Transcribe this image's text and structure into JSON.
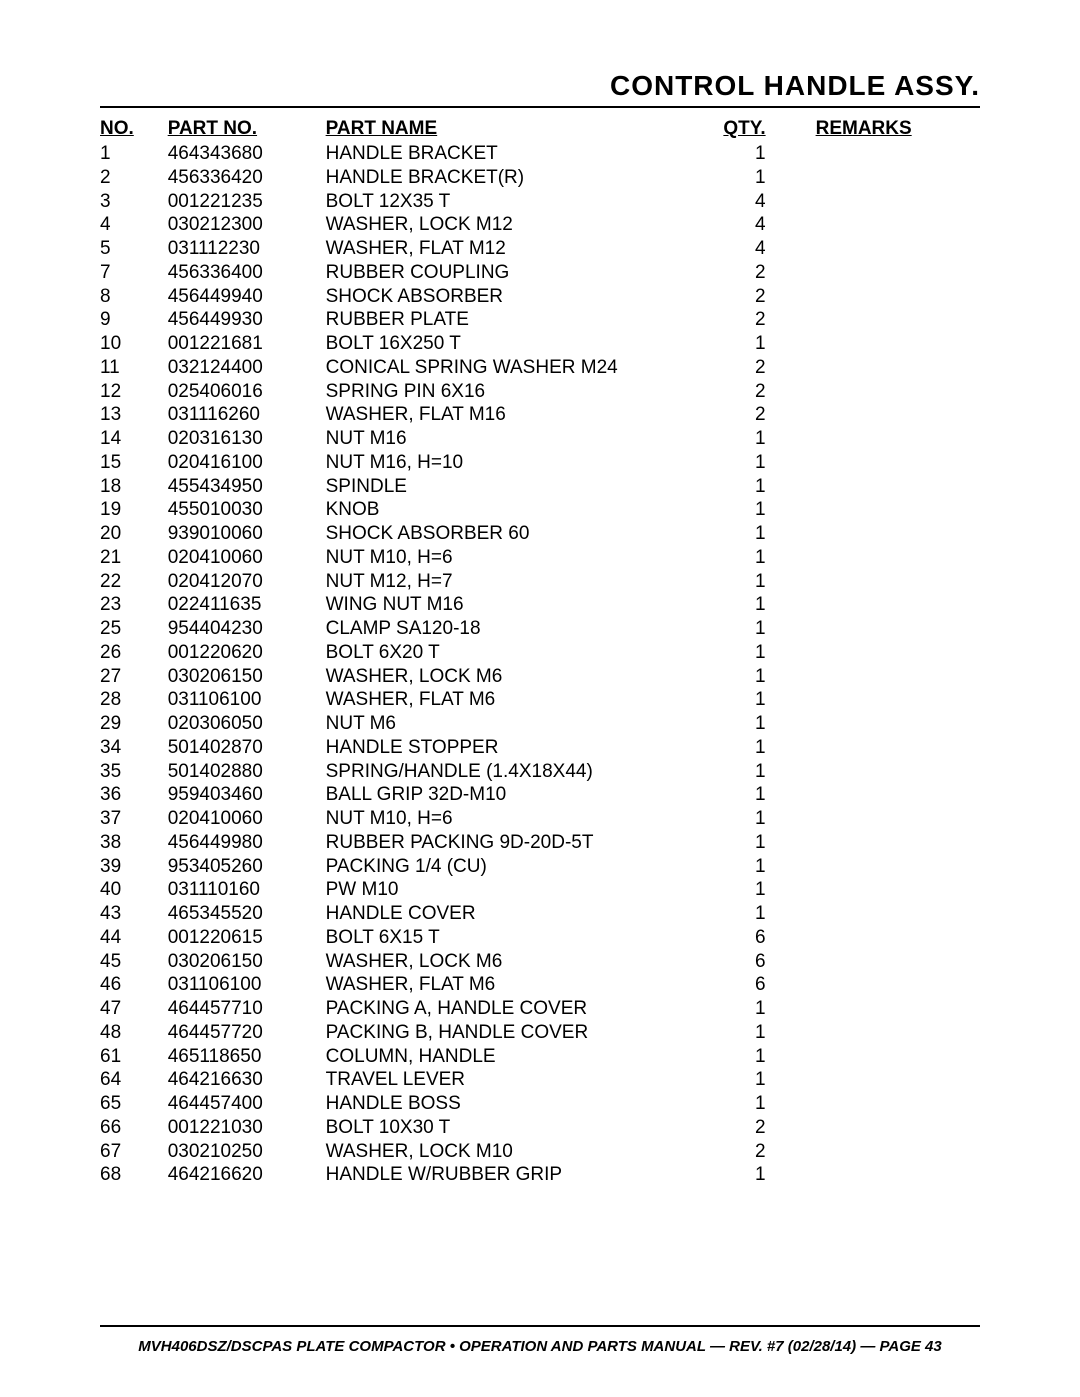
{
  "title": "CONTROL HANDLE ASSY.",
  "headers": {
    "no": "NO.",
    "partno": "PART NO.",
    "partname": "PART NAME",
    "qty": "QTY.",
    "remarks": "REMARKS"
  },
  "rows": [
    {
      "no": "1",
      "partno": "464343680",
      "partname": "HANDLE BRACKET",
      "qty": "1",
      "remarks": ""
    },
    {
      "no": "2",
      "partno": "456336420",
      "partname": "HANDLE BRACKET(R)",
      "qty": "1",
      "remarks": ""
    },
    {
      "no": "3",
      "partno": "001221235",
      "partname": "BOLT 12X35 T",
      "qty": "4",
      "remarks": ""
    },
    {
      "no": "4",
      "partno": "030212300",
      "partname": "WASHER, LOCK M12",
      "qty": "4",
      "remarks": ""
    },
    {
      "no": "5",
      "partno": "031112230",
      "partname": "WASHER, FLAT M12",
      "qty": "4",
      "remarks": ""
    },
    {
      "no": "7",
      "partno": "456336400",
      "partname": "RUBBER COUPLING",
      "qty": "2",
      "remarks": ""
    },
    {
      "no": "8",
      "partno": "456449940",
      "partname": "SHOCK ABSORBER",
      "qty": "2",
      "remarks": ""
    },
    {
      "no": "9",
      "partno": "456449930",
      "partname": "RUBBER PLATE",
      "qty": "2",
      "remarks": ""
    },
    {
      "no": "10",
      "partno": "001221681",
      "partname": "BOLT 16X250 T",
      "qty": "1",
      "remarks": ""
    },
    {
      "no": "11",
      "partno": "032124400",
      "partname": "CONICAL SPRING WASHER M24",
      "qty": "2",
      "remarks": ""
    },
    {
      "no": "12",
      "partno": "025406016",
      "partname": "SPRING PIN 6X16",
      "qty": "2",
      "remarks": ""
    },
    {
      "no": "13",
      "partno": "031116260",
      "partname": "WASHER, FLAT M16",
      "qty": "2",
      "remarks": ""
    },
    {
      "no": "14",
      "partno": "020316130",
      "partname": "NUT M16",
      "qty": "1",
      "remarks": ""
    },
    {
      "no": "15",
      "partno": "020416100",
      "partname": "NUT M16, H=10",
      "qty": "1",
      "remarks": ""
    },
    {
      "no": "18",
      "partno": "455434950",
      "partname": "SPINDLE",
      "qty": "1",
      "remarks": ""
    },
    {
      "no": "19",
      "partno": "455010030",
      "partname": "KNOB",
      "qty": "1",
      "remarks": ""
    },
    {
      "no": "20",
      "partno": "939010060",
      "partname": "SHOCK ABSORBER 60",
      "qty": "1",
      "remarks": ""
    },
    {
      "no": "21",
      "partno": "020410060",
      "partname": "NUT M10, H=6",
      "qty": "1",
      "remarks": ""
    },
    {
      "no": "22",
      "partno": "020412070",
      "partname": "NUT M12, H=7",
      "qty": "1",
      "remarks": ""
    },
    {
      "no": "23",
      "partno": "022411635",
      "partname": "WING NUT M16",
      "qty": "1",
      "remarks": ""
    },
    {
      "no": "25",
      "partno": "954404230",
      "partname": "CLAMP SA120-18",
      "qty": "1",
      "remarks": ""
    },
    {
      "no": "26",
      "partno": "001220620",
      "partname": "BOLT 6X20 T",
      "qty": "1",
      "remarks": ""
    },
    {
      "no": "27",
      "partno": "030206150",
      "partname": "WASHER, LOCK M6",
      "qty": "1",
      "remarks": ""
    },
    {
      "no": "28",
      "partno": "031106100",
      "partname": "WASHER, FLAT M6",
      "qty": "1",
      "remarks": ""
    },
    {
      "no": "29",
      "partno": "020306050",
      "partname": "NUT M6",
      "qty": "1",
      "remarks": ""
    },
    {
      "no": "34",
      "partno": "501402870",
      "partname": "HANDLE STOPPER",
      "qty": "1",
      "remarks": ""
    },
    {
      "no": "35",
      "partno": "501402880",
      "partname": "SPRING/HANDLE (1.4X18X44)",
      "qty": "1",
      "remarks": ""
    },
    {
      "no": "36",
      "partno": "959403460",
      "partname": "BALL GRIP 32D-M10",
      "qty": "1",
      "remarks": ""
    },
    {
      "no": "37",
      "partno": "020410060",
      "partname": "NUT M10, H=6",
      "qty": "1",
      "remarks": ""
    },
    {
      "no": "38",
      "partno": "456449980",
      "partname": "RUBBER PACKING 9D-20D-5T",
      "qty": "1",
      "remarks": ""
    },
    {
      "no": "39",
      "partno": "953405260",
      "partname": "PACKING 1/4 (CU)",
      "qty": "1",
      "remarks": ""
    },
    {
      "no": "40",
      "partno": "031110160",
      "partname": "PW M10",
      "qty": "1",
      "remarks": ""
    },
    {
      "no": "43",
      "partno": "465345520",
      "partname": "HANDLE COVER",
      "qty": "1",
      "remarks": ""
    },
    {
      "no": "44",
      "partno": "001220615",
      "partname": "BOLT 6X15 T",
      "qty": "6",
      "remarks": ""
    },
    {
      "no": "45",
      "partno": "030206150",
      "partname": "WASHER, LOCK M6",
      "qty": "6",
      "remarks": ""
    },
    {
      "no": "46",
      "partno": "031106100",
      "partname": "WASHER, FLAT M6",
      "qty": "6",
      "remarks": ""
    },
    {
      "no": "47",
      "partno": "464457710",
      "partname": "PACKING A, HANDLE COVER",
      "qty": "1",
      "remarks": ""
    },
    {
      "no": "48",
      "partno": "464457720",
      "partname": "PACKING B, HANDLE COVER",
      "qty": "1",
      "remarks": ""
    },
    {
      "no": "61",
      "partno": "465118650",
      "partname": "COLUMN, HANDLE",
      "qty": "1",
      "remarks": ""
    },
    {
      "no": "64",
      "partno": "464216630",
      "partname": "TRAVEL LEVER",
      "qty": "1",
      "remarks": ""
    },
    {
      "no": "65",
      "partno": "464457400",
      "partname": "HANDLE BOSS",
      "qty": "1",
      "remarks": ""
    },
    {
      "no": "66",
      "partno": "001221030",
      "partname": "BOLT 10X30 T",
      "qty": "2",
      "remarks": ""
    },
    {
      "no": "67",
      "partno": "030210250",
      "partname": "WASHER, LOCK M10",
      "qty": "2",
      "remarks": ""
    },
    {
      "no": "68",
      "partno": "464216620",
      "partname": "HANDLE W/RUBBER GRIP",
      "qty": "1",
      "remarks": ""
    }
  ],
  "footer": "MVH406DSZ/DSCPAS PLATE COMPACTOR • OPERATION AND PARTS MANUAL — REV. #7 (02/28/14) — PAGE 43"
}
